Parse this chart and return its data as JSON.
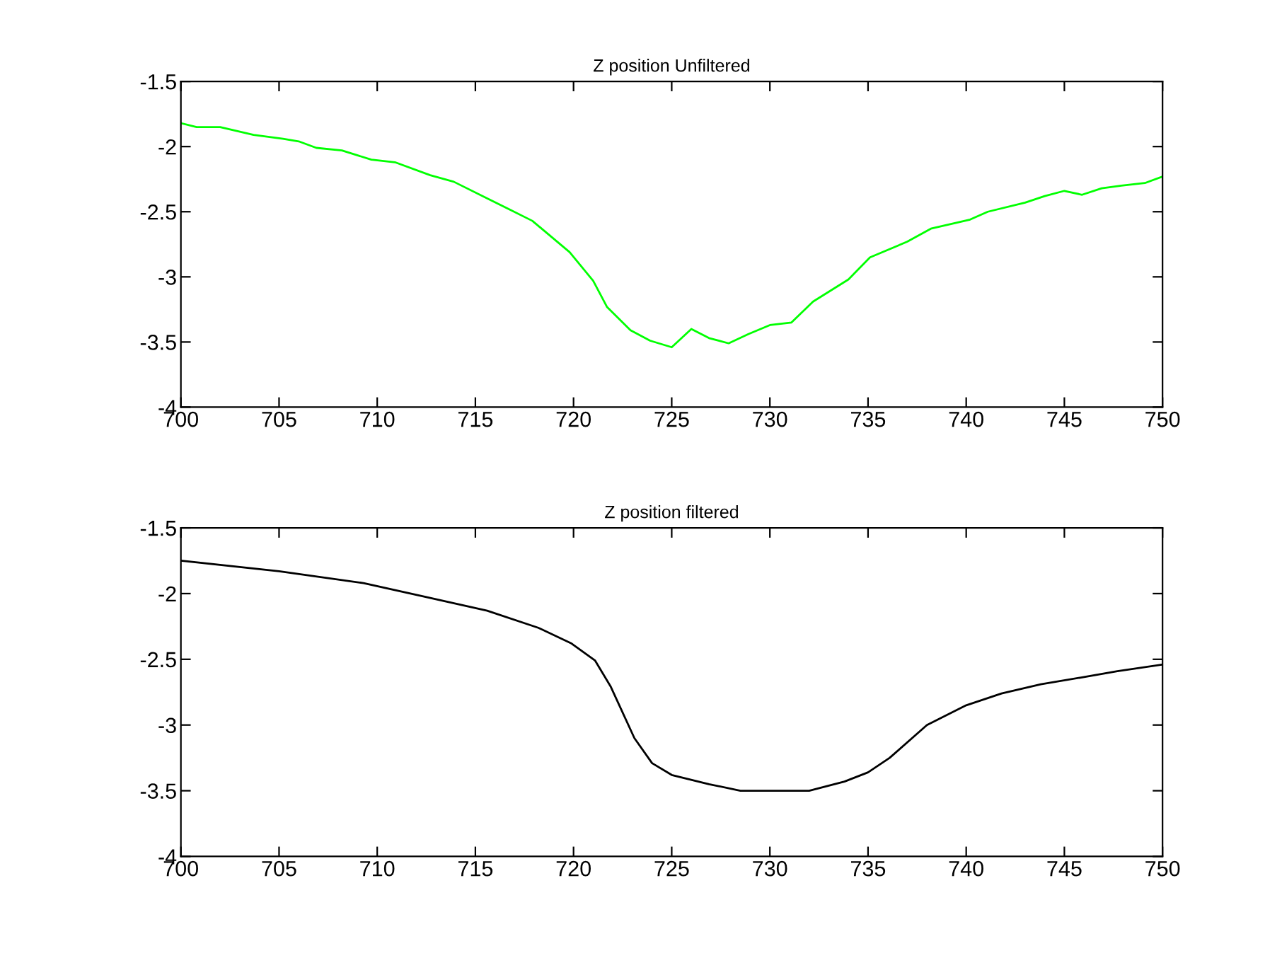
{
  "chart_data": [
    {
      "type": "line",
      "title": "Z position Unfiltered",
      "xlim": [
        700,
        750
      ],
      "xticks": [
        700,
        705,
        710,
        715,
        720,
        725,
        730,
        735,
        740,
        745,
        750
      ],
      "ylim": [
        -4,
        -1.5
      ],
      "yticks": [
        -4,
        -3.5,
        -3,
        -2.5,
        -2,
        -1.5
      ],
      "grid": false,
      "legend": false,
      "series": [
        {
          "color": "#00ff00",
          "x": [
            700,
            700.8,
            702,
            703.7,
            705.2,
            706,
            706.9,
            708.2,
            709.7,
            710.9,
            712.7,
            713.9,
            715.5,
            716.7,
            717.9,
            719.8,
            721,
            721.7,
            722.9,
            723.9,
            725,
            726,
            726.9,
            727.9,
            728.9,
            730,
            731.1,
            732.2,
            734,
            735.1,
            737,
            738.2,
            740.2,
            741.1,
            743,
            744,
            745,
            745.9,
            746.9,
            747.9,
            749.1,
            750
          ],
          "values": [
            -1.82,
            -1.85,
            -1.85,
            -1.91,
            -1.94,
            -1.96,
            -2.01,
            -2.03,
            -2.1,
            -2.12,
            -2.22,
            -2.27,
            -2.39,
            -2.48,
            -2.57,
            -2.81,
            -3.03,
            -3.23,
            -3.41,
            -3.49,
            -3.54,
            -3.4,
            -3.47,
            -3.51,
            -3.44,
            -3.37,
            -3.35,
            -3.19,
            -3.02,
            -2.85,
            -2.73,
            -2.63,
            -2.56,
            -2.5,
            -2.43,
            -2.38,
            -2.34,
            -2.37,
            -2.32,
            -2.3,
            -2.28,
            -2.23
          ]
        }
      ]
    },
    {
      "type": "line",
      "title": "Z position filtered",
      "xlim": [
        700,
        750
      ],
      "xticks": [
        700,
        705,
        710,
        715,
        720,
        725,
        730,
        735,
        740,
        745,
        750
      ],
      "ylim": [
        -4,
        -1.5
      ],
      "yticks": [
        -4,
        -3.5,
        -3,
        -2.5,
        -2,
        -1.5
      ],
      "grid": false,
      "legend": false,
      "series": [
        {
          "color": "#000000",
          "x": [
            700,
            705,
            709.3,
            712.3,
            715.6,
            718.2,
            719.9,
            721.1,
            721.9,
            723.1,
            724,
            725,
            726.9,
            728.5,
            732,
            733.8,
            735,
            736.1,
            738,
            740,
            741.8,
            743.8,
            745.8,
            747.7,
            750
          ],
          "values": [
            -1.75,
            -1.83,
            -1.92,
            -2.02,
            -2.13,
            -2.26,
            -2.38,
            -2.51,
            -2.71,
            -3.1,
            -3.29,
            -3.38,
            -3.45,
            -3.5,
            -3.5,
            -3.43,
            -3.36,
            -3.25,
            -3.0,
            -2.85,
            -2.76,
            -2.69,
            -2.64,
            -2.59,
            -2.54
          ]
        }
      ]
    }
  ]
}
